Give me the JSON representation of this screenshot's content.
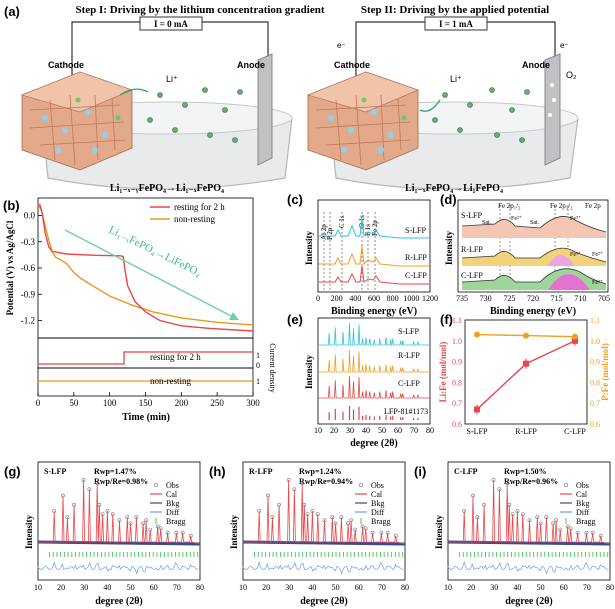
{
  "figure": {
    "a": {
      "label": "(a)",
      "step1": {
        "title": "Step I: Driving by the lithium concentration gradient",
        "current": "I = 0 mA",
        "cathode": "Cathode",
        "anode": "Anode",
        "li_ion": "Li⁺",
        "reaction": "Li₁₋ₓ₋ᵧFePO₄→Li₁₋ₓFePO₄"
      },
      "step2": {
        "title": "Step II: Driving by the applied potential",
        "current": "I = 1 mA",
        "cathode": "Cathode",
        "anode": "Anode",
        "li_ion": "Li⁺",
        "e_left": "e⁻",
        "e_right": "e⁻",
        "o2": "O₂",
        "reaction": "Li₁₋ₓFePO₄→Li₁FePO₄"
      }
    },
    "b": {
      "label": "(b)",
      "ylabel": "Potential (V) vs Ag/AgCl",
      "ylabel2": "Current density",
      "xlabel": "Time (min)",
      "annotation": "Li₁₋ₓFePO₄→LiFePO₄",
      "legend": [
        "resting for 2 h",
        "non-resting"
      ],
      "legend_lower_1": "resting for 2 h",
      "legend_lower_2": "non-resting",
      "yticks": [
        "0.0",
        "-0.3",
        "-0.6",
        "-0.9",
        "-1.2"
      ],
      "xticks": [
        "0",
        "50",
        "100",
        "150",
        "200",
        "250",
        "300"
      ],
      "cd_ticks_1": [
        "1",
        "0"
      ],
      "cd_ticks_2": [
        "1"
      ],
      "colors": {
        "resting": "#e8474b",
        "nonresting": "#e89a1d",
        "arrow": "#6fd0a4"
      }
    },
    "c": {
      "label": "(c)",
      "ylabel": "Intensity",
      "xlabel": "Binding energy (eV)",
      "peaks": [
        "Al 2p",
        "P 2p",
        "C 1s",
        "O 1s",
        "F 1s",
        "Fe 2p"
      ],
      "series": [
        "S-LFP",
        "R-LFP",
        "C-LFP"
      ],
      "xticks": [
        "0",
        "200",
        "400",
        "600",
        "800",
        "1000",
        "1200"
      ],
      "colors": [
        "#2ec4dc",
        "#f0a020",
        "#e8474b"
      ]
    },
    "d": {
      "label": "(d)",
      "ylabel": "Intensity",
      "xlabel": "Binding energy (eV)",
      "peaks": [
        "Fe 2p₁/₂",
        "Fe 2p₃/₂",
        "Fe 2p"
      ],
      "annotations": [
        "Sat.",
        "Sat.",
        "Fe²⁺",
        "Fe³⁺",
        "Fe²⁺",
        "Fe³⁺",
        "Fe²⁺"
      ],
      "series": [
        "S-LFP",
        "R-LFP",
        "C-LFP"
      ],
      "xticks": [
        "735",
        "730",
        "725",
        "720",
        "715",
        "710",
        "705"
      ]
    },
    "e": {
      "label": "(e)",
      "ylabel": "Intensity",
      "xlabel": "degree (2θ)",
      "series": [
        "S-LFP",
        "R-LFP",
        "C-LFP",
        "LFP-81#1173"
      ],
      "xticks": [
        "10",
        "20",
        "30",
        "40",
        "50",
        "60",
        "70",
        "80"
      ]
    },
    "f": {
      "label": "(f)",
      "ylabel_left": "Li:Fe (mol/mol)",
      "ylabel_right": "P:Fe (mol/mol)",
      "categories": [
        "S-LFP",
        "R-LFP",
        "C-LFP"
      ],
      "yticks": [
        "0.6",
        "0.7",
        "0.8",
        "0.9",
        "1.0",
        "1.1"
      ],
      "colors": {
        "li": "#e8474b",
        "p": "#f0a020"
      }
    },
    "g": {
      "label": "(g)",
      "sample": "S-LFP",
      "rwp": "Rwp=1.47%",
      "ratio": "Rwp/Re=0.98%"
    },
    "h": {
      "label": "(h)",
      "sample": "R-LFP",
      "rwp": "Rwp=1.24%",
      "ratio": "Rwp/Re=0.94%"
    },
    "i": {
      "label": "(i)",
      "sample": "C-LFP",
      "rwp": "Rwp=1.50%",
      "ratio": "Rwp/Re=0.96%"
    },
    "refine": {
      "ylabel": "Intensity",
      "xlabel": "degree (2θ)",
      "legend": [
        "Obs",
        "Cal",
        "Bkg",
        "Diff",
        "Bragg"
      ],
      "xticks": [
        "10",
        "20",
        "30",
        "40",
        "50",
        "60",
        "70",
        "80"
      ]
    }
  },
  "chart_data": [
    {
      "panel": "b-upper",
      "type": "line",
      "xlabel": "Time (min)",
      "ylabel": "Potential (V) vs Ag/AgCl",
      "xlim": [
        0,
        300
      ],
      "ylim": [
        -1.4,
        0.2
      ],
      "series": [
        {
          "name": "resting for 2 h",
          "x": [
            0,
            3,
            6,
            10,
            15,
            20,
            40,
            80,
            115,
            119,
            121,
            125,
            135,
            150,
            170,
            200,
            240,
            300
          ],
          "y": [
            0.13,
            0.12,
            0.02,
            -0.2,
            -0.36,
            -0.41,
            -0.44,
            -0.455,
            -0.46,
            -0.47,
            -0.6,
            -0.8,
            -0.98,
            -1.1,
            -1.2,
            -1.26,
            -1.29,
            -1.32
          ]
        },
        {
          "name": "non-resting",
          "x": [
            0,
            5,
            10,
            15,
            20,
            25,
            30,
            40,
            50,
            60,
            80,
            100,
            130,
            160,
            200,
            250,
            300
          ],
          "y": [
            0.13,
            0.05,
            -0.12,
            -0.28,
            -0.42,
            -0.48,
            -0.5,
            -0.55,
            -0.65,
            -0.72,
            -0.82,
            -0.92,
            -1.02,
            -1.1,
            -1.17,
            -1.22,
            -1.25
          ]
        }
      ]
    },
    {
      "panel": "b-lower",
      "type": "line",
      "xlim": [
        0,
        300
      ],
      "series": [
        {
          "name": "resting for 2 h",
          "x": [
            0,
            120,
            120,
            300
          ],
          "y": [
            0,
            0,
            1,
            1
          ]
        },
        {
          "name": "non-resting",
          "x": [
            0,
            300
          ],
          "y": [
            1,
            1
          ]
        }
      ]
    },
    {
      "panel": "f",
      "type": "line",
      "categories": [
        "S-LFP",
        "R-LFP",
        "C-LFP"
      ],
      "ylim": [
        0.6,
        1.1
      ],
      "series": [
        {
          "name": "Li:Fe (mol/mol)",
          "values": [
            0.67,
            0.89,
            1.0
          ]
        },
        {
          "name": "P:Fe (mol/mol)",
          "values": [
            1.03,
            1.025,
            1.02
          ]
        }
      ]
    }
  ]
}
